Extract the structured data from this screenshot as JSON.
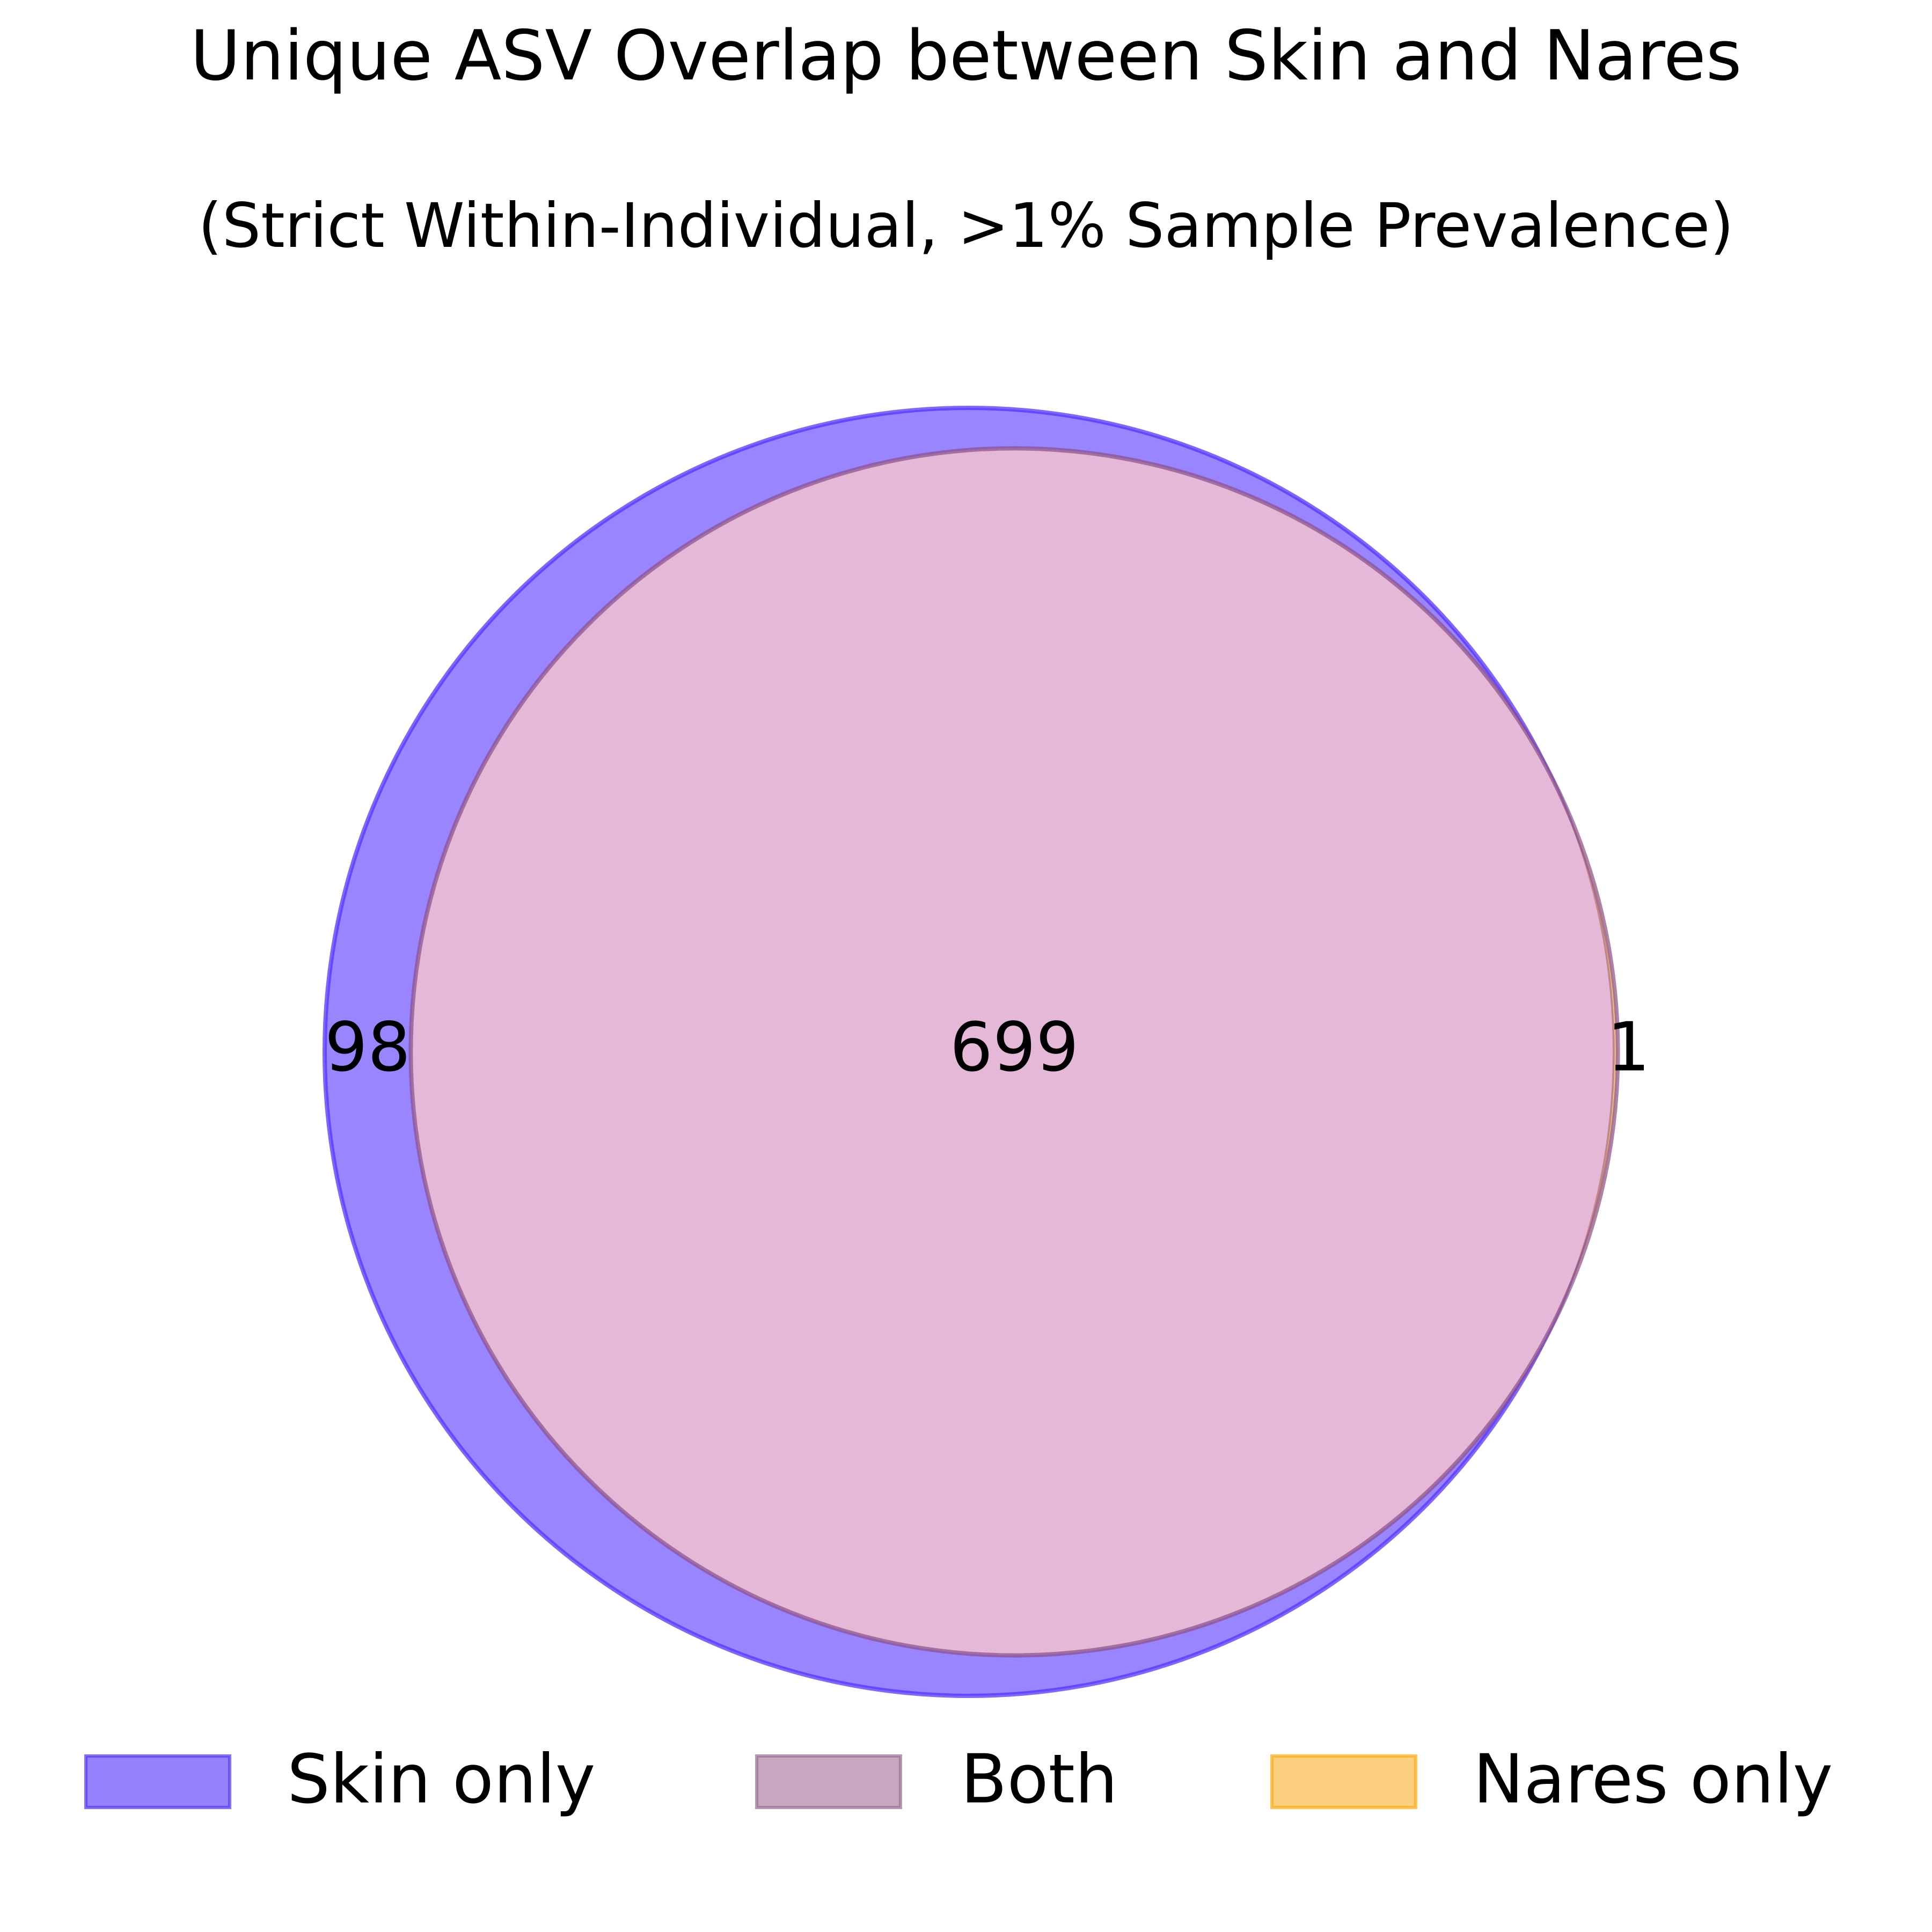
{
  "chart_data": {
    "type": "venn",
    "title": "Unique ASV Overlap between Skin and Nares",
    "subtitle": "(Strict Within-Individual, >1% Sample Prevalence)",
    "sets": [
      {
        "name": "Skin",
        "size": 797,
        "color": "#5533ff"
      },
      {
        "name": "Nares",
        "size": 700,
        "color": "#ffaa11"
      }
    ],
    "regions": [
      {
        "label": "Skin only",
        "value": 98,
        "color": "#5533ff"
      },
      {
        "label": "Both",
        "value": 699,
        "color": "#b189a8"
      },
      {
        "label": "Nares only",
        "value": 1,
        "color": "#ffaa11"
      }
    ],
    "labels": {
      "skin_only": "98",
      "both": "699",
      "nares_only": "1"
    },
    "legend": {
      "placement": "bottom",
      "items": [
        {
          "label": "Skin only",
          "color": "#5533ff"
        },
        {
          "label": "Both",
          "color": "#b189a8"
        },
        {
          "label": "Nares only",
          "color": "#ffaa11"
        }
      ]
    }
  }
}
